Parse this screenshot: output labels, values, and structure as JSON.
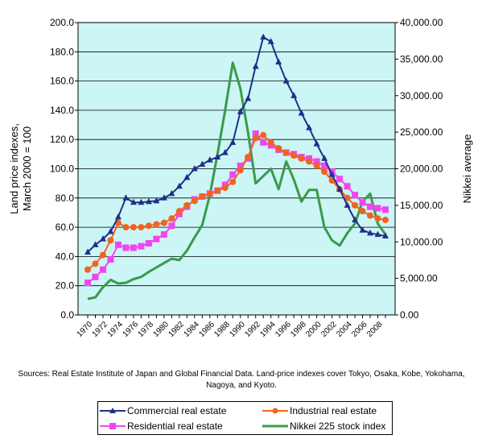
{
  "chart_data": {
    "type": "line",
    "title": "",
    "xlabel": "",
    "ylabel": "Land price indexes, March 2000 = 100",
    "ylabel_lines": [
      "Land price indexes,",
      "March 2000 = 100"
    ],
    "y2label": "Nikkei average",
    "ylim": [
      0,
      200
    ],
    "y2lim": [
      0,
      40000
    ],
    "yticks": [
      "0.0",
      "20.0",
      "40.0",
      "60.0",
      "80.0",
      "100.0",
      "120.0",
      "140.0",
      "160.0",
      "180.0",
      "200.0"
    ],
    "y2ticks": [
      "0.00",
      "5,000.00",
      "10,000.00",
      "15,000.00",
      "20,000.00",
      "25,000.00",
      "30,000.00",
      "35,000.00",
      "40,000.00"
    ],
    "xticks": [
      "1970",
      "1972",
      "1974",
      "1976",
      "1978",
      "1980",
      "1982",
      "1984",
      "1986",
      "1988",
      "1990",
      "1992",
      "1994",
      "1996",
      "1998",
      "2000",
      "2002",
      "2004",
      "2006",
      "2008"
    ],
    "x": [
      1970,
      1971,
      1972,
      1973,
      1974,
      1975,
      1976,
      1977,
      1978,
      1979,
      1980,
      1981,
      1982,
      1983,
      1984,
      1985,
      1986,
      1987,
      1988,
      1989,
      1990,
      1991,
      1992,
      1993,
      1994,
      1995,
      1996,
      1997,
      1998,
      1999,
      2000,
      2001,
      2002,
      2003,
      2004,
      2005,
      2006,
      2007,
      2008,
      2009
    ],
    "plot_background": "#ccf5f5",
    "legend_position": "bottom",
    "series": [
      {
        "name": "Commercial real estate",
        "axis": "left",
        "color": "#1f2f8c",
        "marker": "triangle",
        "values": [
          43,
          48,
          52,
          57,
          67,
          80,
          77,
          77,
          77.5,
          78,
          80,
          83,
          88,
          94,
          100,
          103,
          106,
          108,
          111,
          118,
          139,
          148,
          170,
          190,
          187,
          173,
          160,
          150,
          138,
          128,
          117,
          107,
          96,
          86,
          75,
          65,
          58,
          56,
          55,
          54
        ]
      },
      {
        "name": "Industrial real estate",
        "axis": "left",
        "color": "#f0641e",
        "marker": "circle",
        "values": [
          31,
          35,
          41,
          51,
          63,
          60,
          60,
          60,
          61,
          62,
          63,
          66,
          71,
          75,
          78,
          81,
          83,
          85,
          87,
          91,
          99,
          108,
          121,
          123,
          118,
          114,
          111,
          109,
          107,
          105,
          102,
          98,
          92,
          86,
          80,
          75,
          71,
          68,
          66,
          65
        ]
      },
      {
        "name": "Residential real estate",
        "axis": "left",
        "color": "#f045f0",
        "marker": "square",
        "values": [
          22,
          26,
          31,
          38,
          48,
          46,
          46,
          47,
          49,
          52,
          55,
          61,
          69,
          74,
          79,
          81,
          83,
          85,
          89,
          96,
          102,
          107,
          124,
          118,
          116,
          113,
          111,
          110,
          108,
          107,
          105,
          102,
          98,
          93,
          88,
          82,
          77,
          74,
          73,
          72
        ]
      },
      {
        "name": "Nikkei 225 stock index",
        "axis": "right",
        "color": "#3a9a4a",
        "marker": "none",
        "values": [
          2200,
          2400,
          3800,
          4800,
          4300,
          4400,
          4900,
          5200,
          5900,
          6500,
          7100,
          7700,
          7500,
          8800,
          10600,
          12300,
          16400,
          22000,
          28000,
          34500,
          31000,
          25000,
          18000,
          19000,
          20000,
          17200,
          21000,
          18500,
          15500,
          17100,
          17100,
          12000,
          10200,
          9500,
          11200,
          12500,
          15500,
          16600,
          12500,
          11000
        ]
      }
    ]
  },
  "source_note": "Sources: Real Estate Institute of Japan and Global Financial Data. Land-price indexes cover Tokyo, Osaka, Kobe, Yokohama, Nagoya, and Kyoto."
}
